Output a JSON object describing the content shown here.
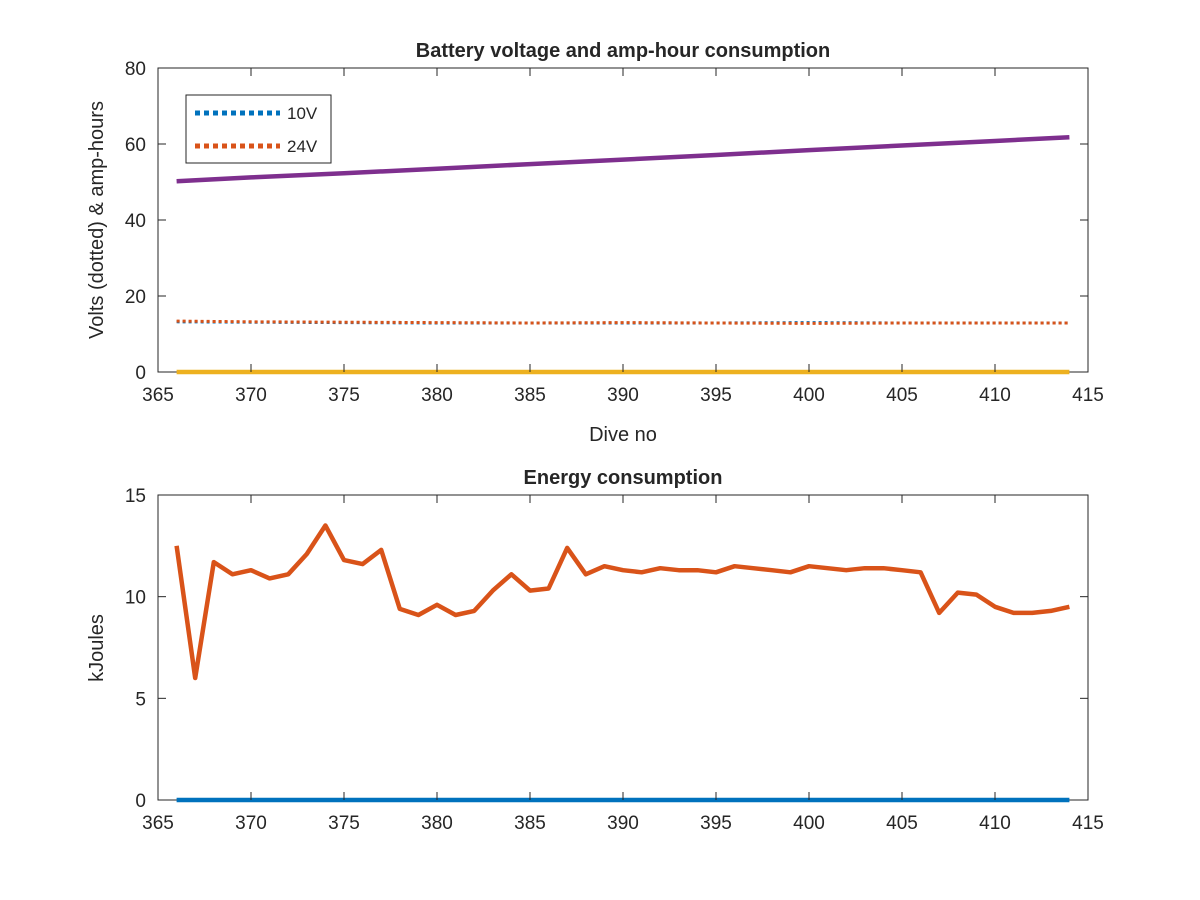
{
  "chart_data": [
    {
      "type": "line",
      "title": "Battery voltage and amp-hour consumption",
      "xlabel": "Dive no",
      "ylabel": "Volts (dotted) & amp-hours",
      "xlim": [
        365,
        415
      ],
      "ylim": [
        0,
        80
      ],
      "xticks": [
        365,
        370,
        375,
        380,
        385,
        390,
        395,
        400,
        405,
        410,
        415
      ],
      "yticks": [
        0,
        20,
        40,
        60,
        80
      ],
      "grid": false,
      "legend_location": "top-left",
      "x": [
        366,
        370,
        375,
        380,
        385,
        390,
        395,
        400,
        405,
        410,
        414
      ],
      "series": [
        {
          "name": "10V",
          "style": "dotted",
          "color": "#0072BD",
          "values": [
            13.2,
            13.1,
            13.0,
            12.9,
            12.9,
            12.9,
            12.9,
            13.0,
            12.9,
            12.9,
            12.9
          ]
        },
        {
          "name": "24V",
          "style": "dotted",
          "color": "#D95319",
          "values": [
            13.4,
            13.2,
            13.1,
            13.0,
            12.9,
            13.0,
            12.9,
            12.8,
            12.9,
            12.9,
            12.9
          ]
        },
        {
          "style": "solid",
          "color": "#EDB120",
          "values": [
            0,
            0,
            0,
            0,
            0,
            0,
            0,
            0,
            0,
            0,
            0
          ]
        },
        {
          "style": "solid",
          "color": "#7E2F8E",
          "values": [
            50.2,
            51.2,
            52.3,
            53.5,
            54.7,
            55.9,
            57.1,
            58.4,
            59.6,
            60.8,
            61.8
          ]
        }
      ]
    },
    {
      "type": "line",
      "title": "Energy consumption",
      "xlabel": "",
      "ylabel": "kJoules",
      "xlim": [
        365,
        415
      ],
      "ylim": [
        0,
        15
      ],
      "xticks": [
        365,
        370,
        375,
        380,
        385,
        390,
        395,
        400,
        405,
        410,
        415
      ],
      "yticks": [
        0,
        5,
        10,
        15
      ],
      "grid": false,
      "x": [
        366,
        367,
        368,
        369,
        370,
        371,
        372,
        373,
        374,
        375,
        376,
        377,
        378,
        379,
        380,
        381,
        382,
        383,
        384,
        385,
        386,
        387,
        388,
        389,
        390,
        391,
        392,
        393,
        394,
        395,
        396,
        397,
        398,
        399,
        400,
        401,
        402,
        403,
        404,
        405,
        406,
        407,
        408,
        409,
        410,
        411,
        412,
        413,
        414
      ],
      "series": [
        {
          "style": "solid",
          "color": "#0072BD",
          "values": [
            0,
            0,
            0,
            0,
            0,
            0,
            0,
            0,
            0,
            0,
            0,
            0,
            0,
            0,
            0,
            0,
            0,
            0,
            0,
            0,
            0,
            0,
            0,
            0,
            0,
            0,
            0,
            0,
            0,
            0,
            0,
            0,
            0,
            0,
            0,
            0,
            0,
            0,
            0,
            0,
            0,
            0,
            0,
            0,
            0,
            0,
            0,
            0,
            0
          ]
        },
        {
          "style": "solid",
          "color": "#D95319",
          "values": [
            12.5,
            6.0,
            11.7,
            11.1,
            11.3,
            10.9,
            11.1,
            12.1,
            13.5,
            11.8,
            11.6,
            12.3,
            9.4,
            9.1,
            9.6,
            9.1,
            9.3,
            10.3,
            11.1,
            10.3,
            10.4,
            12.4,
            11.1,
            11.5,
            11.3,
            11.2,
            11.4,
            11.3,
            11.3,
            11.2,
            11.5,
            11.4,
            11.3,
            11.2,
            11.5,
            11.4,
            11.3,
            11.4,
            11.4,
            11.3,
            11.2,
            9.2,
            10.2,
            10.1,
            9.5,
            9.2,
            9.2,
            9.3,
            9.5
          ]
        }
      ]
    }
  ]
}
